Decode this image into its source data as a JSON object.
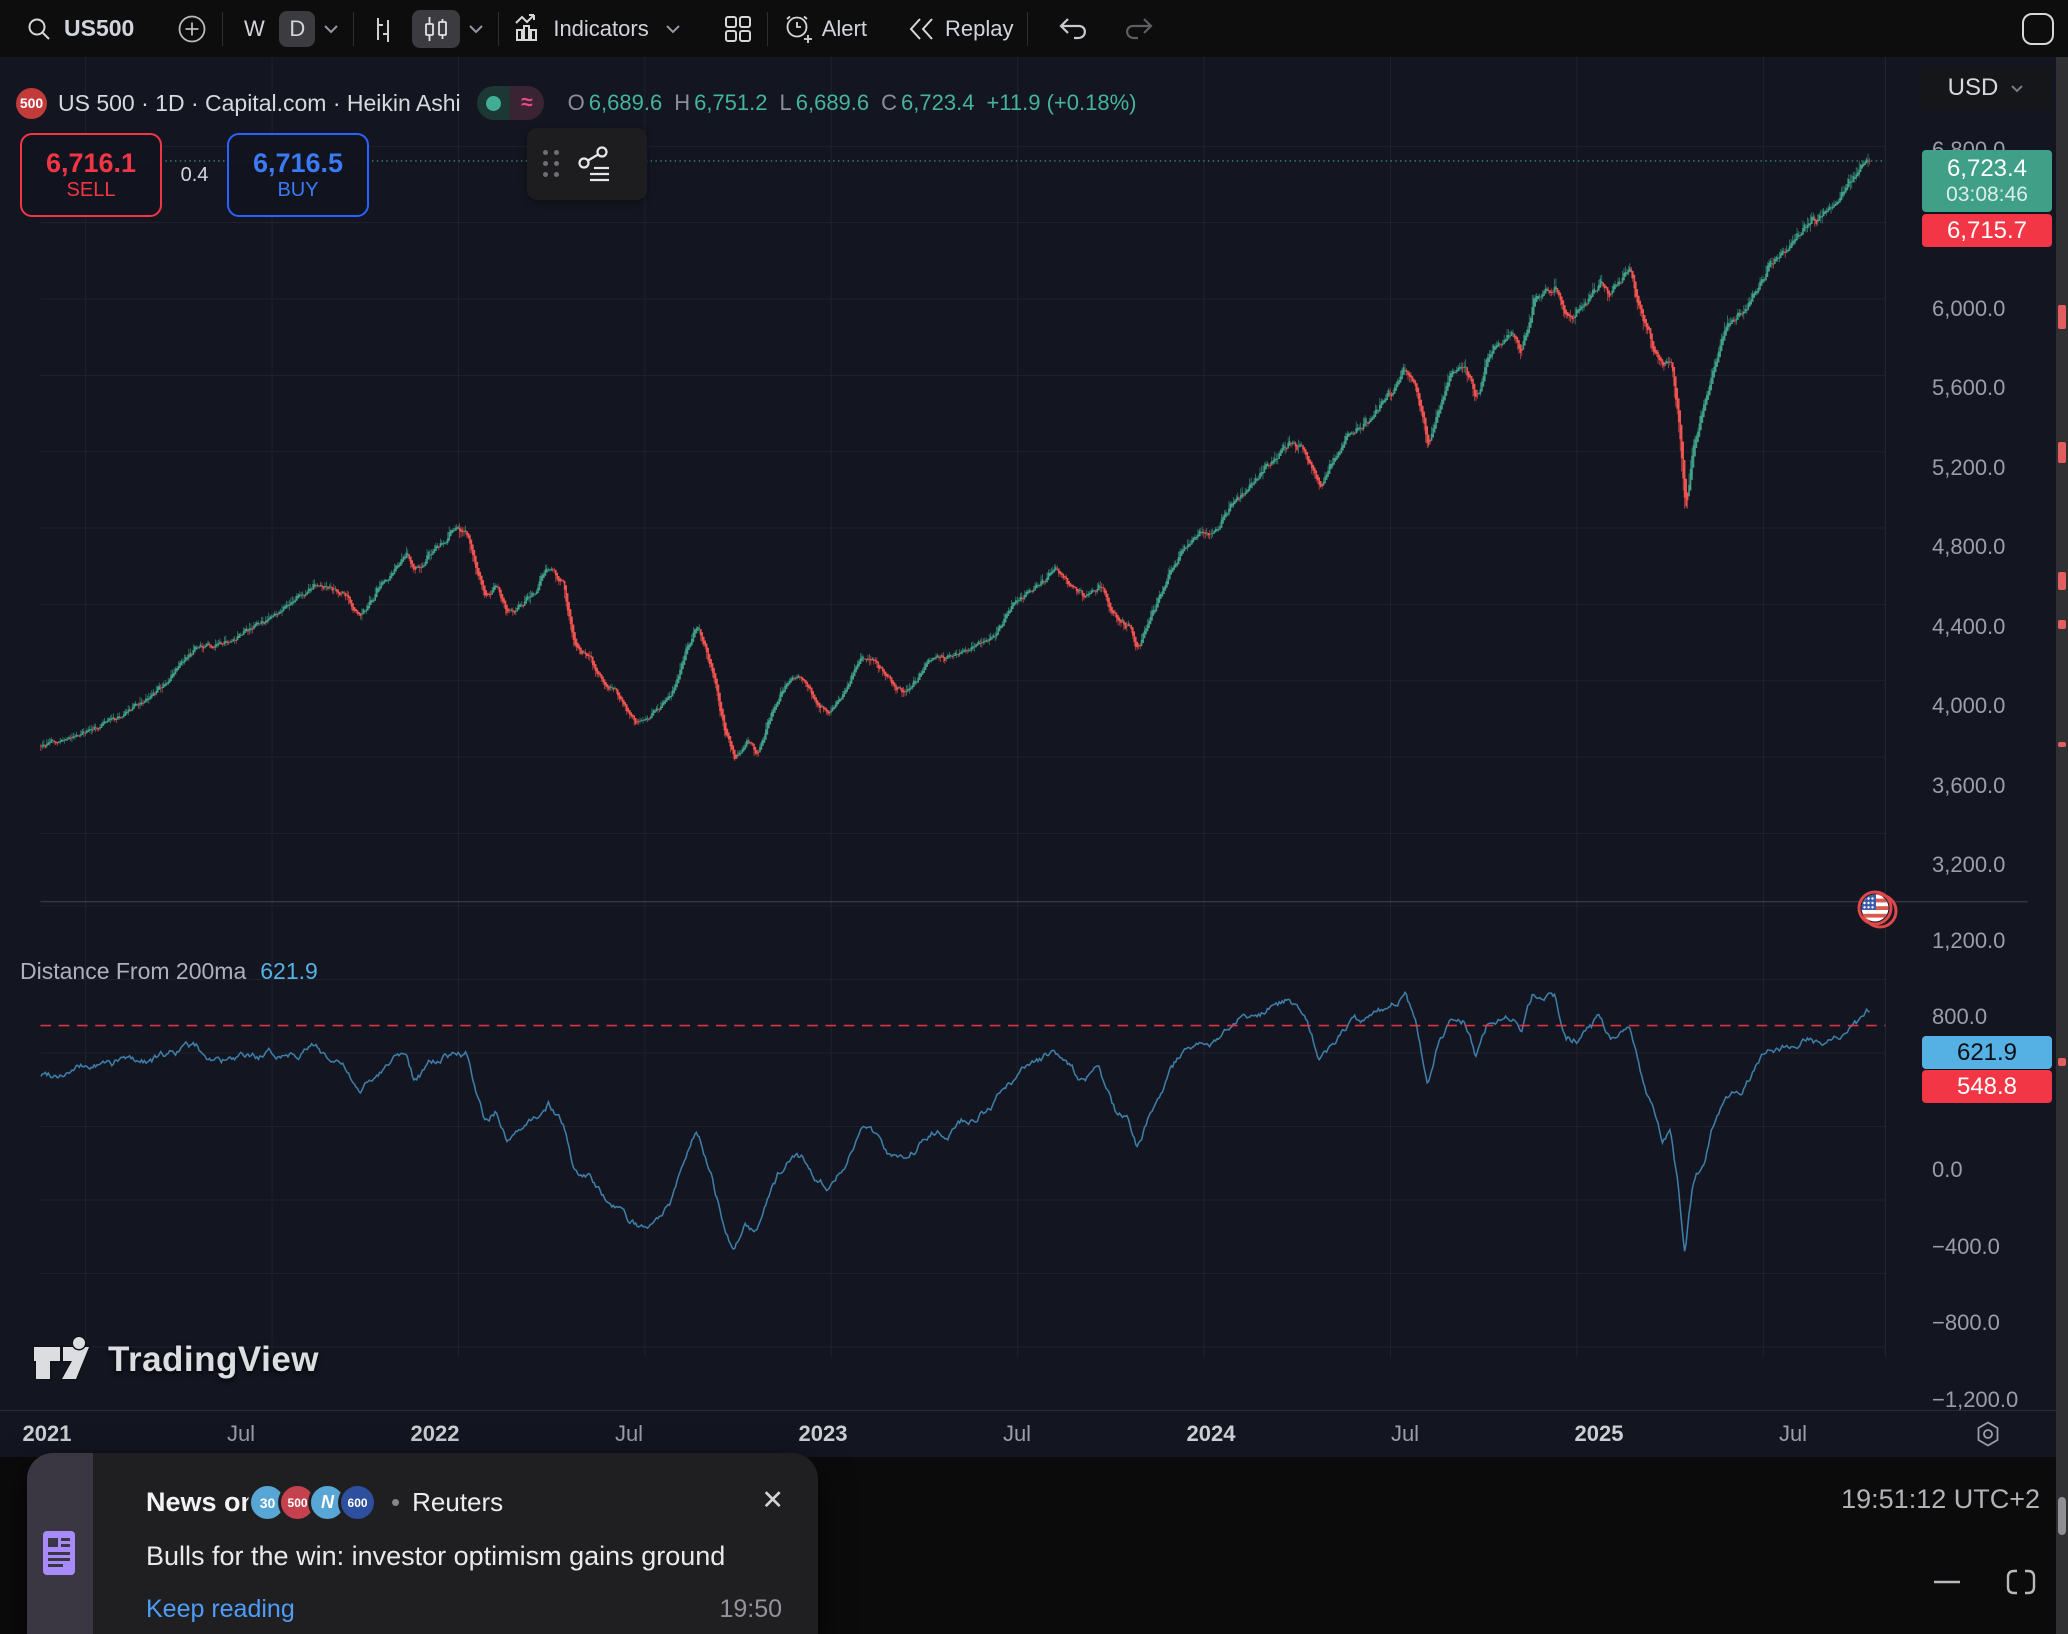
{
  "toolbar": {
    "symbol": "US500",
    "interval_w": "W",
    "interval_d": "D",
    "indicators": "Indicators",
    "alert": "Alert",
    "replay": "Replay"
  },
  "currency": {
    "value": "USD"
  },
  "legend": {
    "badge": "500",
    "title": "US 500 · 1D · Capital.com · Heikin Ashi",
    "approx_symbol": "≈",
    "o_label": "O",
    "o": "6,689.6",
    "h_label": "H",
    "h": "6,751.2",
    "l_label": "L",
    "l": "6,689.6",
    "c_label": "C",
    "c": "6,723.4",
    "change": "+11.9 (+0.18%)"
  },
  "trade": {
    "sell_price": "6,716.1",
    "sell": "SELL",
    "spread": "0.4",
    "buy_price": "6,716.5",
    "buy": "BUY"
  },
  "price_labels": {
    "last": "6,723.4",
    "countdown": "03:08:46",
    "bid": "6,715.7"
  },
  "indicator": {
    "name": "Distance From 200ma",
    "value": "621.9",
    "alert": "548.8"
  },
  "watermark": {
    "text": "TradingView"
  },
  "news": {
    "prefix": "News on",
    "badges": [
      "30",
      "500",
      "N",
      "600"
    ],
    "source": "Reuters",
    "headline": "Bulls for the win: investor optimism gains ground",
    "cta": "Keep reading",
    "time": "19:50"
  },
  "status": {
    "clock": "19:51:12 UTC+2"
  },
  "colors": {
    "candle_up": "#40a087",
    "candle_down": "#ef5350",
    "sell_red": "#f23645",
    "buy_blue": "#2962ff",
    "indicator_line": "#3e7ea8",
    "indicator_tag_blue": "#55b1e3",
    "teal_text": "#45b39d",
    "chart_bg": "#131621"
  },
  "chart_data": {
    "type": "candlestick",
    "symbol": "US 500",
    "interval": "1D",
    "candle_style": "Heikin Ashi",
    "x_start": 2020.88,
    "x_end": 2025.785,
    "x_ticks": [
      {
        "t": 2021.0,
        "label": "2021",
        "major": true
      },
      {
        "t": 2021.5,
        "label": "Jul",
        "major": false
      },
      {
        "t": 2022.0,
        "label": "2022",
        "major": true
      },
      {
        "t": 2022.5,
        "label": "Jul",
        "major": false
      },
      {
        "t": 2023.0,
        "label": "2023",
        "major": true
      },
      {
        "t": 2023.5,
        "label": "Jul",
        "major": false
      },
      {
        "t": 2024.0,
        "label": "2024",
        "major": true
      },
      {
        "t": 2024.5,
        "label": "Jul",
        "major": false
      },
      {
        "t": 2025.0,
        "label": "2025",
        "major": true
      },
      {
        "t": 2025.5,
        "label": "Jul",
        "major": false
      }
    ],
    "price_pane": {
      "grid_min": 3200,
      "grid_max": 6800,
      "grid_step": 400,
      "axis_labels": [
        {
          "v": 6800,
          "text": "6,800.0"
        },
        {
          "v": 6000,
          "text": "6,000.0"
        },
        {
          "v": 5600,
          "text": "5,600.0"
        },
        {
          "v": 5200,
          "text": "5,200.0"
        },
        {
          "v": 4800,
          "text": "4,800.0"
        },
        {
          "v": 4400,
          "text": "4,400.0"
        },
        {
          "v": 4000,
          "text": "4,000.0"
        },
        {
          "v": 3600,
          "text": "3,600.0"
        },
        {
          "v": 3200,
          "text": "3,200.0"
        }
      ],
      "open": 6689.6,
      "high": 6751.2,
      "low": 6689.6,
      "close": 6723.4,
      "change": 11.9,
      "change_pct": 0.18,
      "last_price": 6723.4,
      "bid_price": 6715.7,
      "anchors": [
        [
          2020.88,
          3660
        ],
        [
          2020.96,
          3695
        ],
        [
          2021.04,
          3770
        ],
        [
          2021.1,
          3830
        ],
        [
          2021.16,
          3900
        ],
        [
          2021.2,
          3960
        ],
        [
          2021.25,
          4080
        ],
        [
          2021.29,
          4170
        ],
        [
          2021.33,
          4180
        ],
        [
          2021.37,
          4200
        ],
        [
          2021.41,
          4230
        ],
        [
          2021.45,
          4290
        ],
        [
          2021.5,
          4330
        ],
        [
          2021.54,
          4400
        ],
        [
          2021.58,
          4450
        ],
        [
          2021.62,
          4520
        ],
        [
          2021.66,
          4480
        ],
        [
          2021.7,
          4450
        ],
        [
          2021.73,
          4330
        ],
        [
          2021.78,
          4470
        ],
        [
          2021.83,
          4600
        ],
        [
          2021.86,
          4690
        ],
        [
          2021.88,
          4560
        ],
        [
          2021.92,
          4660
        ],
        [
          2021.95,
          4710
        ],
        [
          2021.98,
          4780
        ],
        [
          2022.02,
          4790
        ],
        [
          2022.05,
          4560
        ],
        [
          2022.07,
          4420
        ],
        [
          2022.1,
          4500
        ],
        [
          2022.13,
          4350
        ],
        [
          2022.16,
          4380
        ],
        [
          2022.2,
          4460
        ],
        [
          2022.24,
          4600
        ],
        [
          2022.28,
          4500
        ],
        [
          2022.31,
          4180
        ],
        [
          2022.35,
          4130
        ],
        [
          2022.38,
          4000
        ],
        [
          2022.42,
          3950
        ],
        [
          2022.46,
          3800
        ],
        [
          2022.49,
          3780
        ],
        [
          2022.53,
          3850
        ],
        [
          2022.57,
          3920
        ],
        [
          2022.61,
          4160
        ],
        [
          2022.64,
          4290
        ],
        [
          2022.68,
          4050
        ],
        [
          2022.71,
          3750
        ],
        [
          2022.74,
          3590
        ],
        [
          2022.77,
          3680
        ],
        [
          2022.8,
          3620
        ],
        [
          2022.83,
          3790
        ],
        [
          2022.87,
          3960
        ],
        [
          2022.9,
          4020
        ],
        [
          2022.93,
          3980
        ],
        [
          2022.96,
          3870
        ],
        [
          2022.99,
          3830
        ],
        [
          2023.03,
          3930
        ],
        [
          2023.08,
          4130
        ],
        [
          2023.12,
          4090
        ],
        [
          2023.16,
          3990
        ],
        [
          2023.19,
          3930
        ],
        [
          2023.23,
          4010
        ],
        [
          2023.27,
          4120
        ],
        [
          2023.31,
          4110
        ],
        [
          2023.35,
          4150
        ],
        [
          2023.39,
          4190
        ],
        [
          2023.44,
          4240
        ],
        [
          2023.48,
          4390
        ],
        [
          2023.52,
          4450
        ],
        [
          2023.56,
          4520
        ],
        [
          2023.6,
          4580
        ],
        [
          2023.64,
          4500
        ],
        [
          2023.68,
          4430
        ],
        [
          2023.72,
          4500
        ],
        [
          2023.76,
          4330
        ],
        [
          2023.8,
          4270
        ],
        [
          2023.82,
          4160
        ],
        [
          2023.86,
          4360
        ],
        [
          2023.9,
          4550
        ],
        [
          2023.94,
          4680
        ],
        [
          2023.98,
          4770
        ],
        [
          2024.03,
          4780
        ],
        [
          2024.07,
          4920
        ],
        [
          2024.11,
          5000
        ],
        [
          2024.15,
          5090
        ],
        [
          2024.19,
          5160
        ],
        [
          2024.23,
          5250
        ],
        [
          2024.27,
          5200
        ],
        [
          2024.31,
          5020
        ],
        [
          2024.35,
          5180
        ],
        [
          2024.39,
          5300
        ],
        [
          2024.43,
          5350
        ],
        [
          2024.47,
          5440
        ],
        [
          2024.51,
          5540
        ],
        [
          2024.54,
          5640
        ],
        [
          2024.57,
          5500
        ],
        [
          2024.6,
          5230
        ],
        [
          2024.63,
          5450
        ],
        [
          2024.66,
          5610
        ],
        [
          2024.7,
          5640
        ],
        [
          2024.73,
          5470
        ],
        [
          2024.76,
          5710
        ],
        [
          2024.8,
          5780
        ],
        [
          2024.83,
          5830
        ],
        [
          2024.85,
          5720
        ],
        [
          2024.88,
          5970
        ],
        [
          2024.91,
          6030
        ],
        [
          2024.94,
          6070
        ],
        [
          2024.97,
          5900
        ],
        [
          2025.0,
          5920
        ],
        [
          2025.03,
          6010
        ],
        [
          2025.06,
          6090
        ],
        [
          2025.09,
          6020
        ],
        [
          2025.12,
          6110
        ],
        [
          2025.14,
          6140
        ],
        [
          2025.17,
          5930
        ],
        [
          2025.2,
          5770
        ],
        [
          2025.23,
          5630
        ],
        [
          2025.25,
          5680
        ],
        [
          2025.27,
          5400
        ],
        [
          2025.29,
          4870
        ],
        [
          2025.31,
          5250
        ],
        [
          2025.34,
          5440
        ],
        [
          2025.37,
          5670
        ],
        [
          2025.4,
          5860
        ],
        [
          2025.44,
          5920
        ],
        [
          2025.48,
          6050
        ],
        [
          2025.52,
          6190
        ],
        [
          2025.56,
          6270
        ],
        [
          2025.6,
          6360
        ],
        [
          2025.63,
          6410
        ],
        [
          2025.66,
          6450
        ],
        [
          2025.69,
          6500
        ],
        [
          2025.72,
          6590
        ],
        [
          2025.75,
          6660
        ],
        [
          2025.785,
          6723
        ]
      ]
    },
    "indicator_pane": {
      "name": "Distance From 200ma",
      "grid_min": -1200,
      "grid_max": 1200,
      "grid_step": 400,
      "axis_labels": [
        {
          "v": 1200,
          "text": "1,200.0"
        },
        {
          "v": 800,
          "text": "800.0"
        },
        {
          "v": 0,
          "text": "0.0"
        },
        {
          "v": -400,
          "text": "−400.0"
        },
        {
          "v": -800,
          "text": "−800.0"
        },
        {
          "v": -1200,
          "text": "−1,200.0"
        }
      ],
      "last_value": 621.9,
      "alert_value": 548.8,
      "anchors": [
        [
          2020.88,
          280
        ],
        [
          2020.96,
          310
        ],
        [
          2021.04,
          330
        ],
        [
          2021.1,
          360
        ],
        [
          2021.16,
          360
        ],
        [
          2021.2,
          380
        ],
        [
          2021.25,
          420
        ],
        [
          2021.29,
          430
        ],
        [
          2021.33,
          380
        ],
        [
          2021.37,
          360
        ],
        [
          2021.41,
          350
        ],
        [
          2021.45,
          370
        ],
        [
          2021.5,
          380
        ],
        [
          2021.54,
          400
        ],
        [
          2021.58,
          420
        ],
        [
          2021.62,
          440
        ],
        [
          2021.66,
          360
        ],
        [
          2021.7,
          300
        ],
        [
          2021.73,
          160
        ],
        [
          2021.78,
          290
        ],
        [
          2021.83,
          390
        ],
        [
          2021.86,
          430
        ],
        [
          2021.88,
          280
        ],
        [
          2021.92,
          340
        ],
        [
          2021.95,
          360
        ],
        [
          2021.98,
          400
        ],
        [
          2022.02,
          390
        ],
        [
          2022.05,
          140
        ],
        [
          2022.07,
          30
        ],
        [
          2022.1,
          90
        ],
        [
          2022.13,
          -80
        ],
        [
          2022.16,
          -60
        ],
        [
          2022.2,
          20
        ],
        [
          2022.24,
          130
        ],
        [
          2022.28,
          30
        ],
        [
          2022.31,
          -260
        ],
        [
          2022.35,
          -290
        ],
        [
          2022.38,
          -380
        ],
        [
          2022.42,
          -420
        ],
        [
          2022.46,
          -540
        ],
        [
          2022.49,
          -560
        ],
        [
          2022.53,
          -470
        ],
        [
          2022.57,
          -390
        ],
        [
          2022.61,
          -140
        ],
        [
          2022.64,
          -20
        ],
        [
          2022.68,
          -250
        ],
        [
          2022.71,
          -520
        ],
        [
          2022.74,
          -660
        ],
        [
          2022.77,
          -550
        ],
        [
          2022.8,
          -600
        ],
        [
          2022.83,
          -420
        ],
        [
          2022.87,
          -230
        ],
        [
          2022.9,
          -160
        ],
        [
          2022.93,
          -190
        ],
        [
          2022.96,
          -290
        ],
        [
          2022.99,
          -320
        ],
        [
          2023.03,
          -210
        ],
        [
          2023.08,
          -20
        ],
        [
          2023.12,
          -50
        ],
        [
          2023.16,
          -150
        ],
        [
          2023.19,
          -200
        ],
        [
          2023.23,
          -110
        ],
        [
          2023.27,
          0
        ],
        [
          2023.31,
          -10
        ],
        [
          2023.35,
          30
        ],
        [
          2023.39,
          60
        ],
        [
          2023.44,
          110
        ],
        [
          2023.48,
          250
        ],
        [
          2023.52,
          300
        ],
        [
          2023.56,
          360
        ],
        [
          2023.6,
          400
        ],
        [
          2023.64,
          310
        ],
        [
          2023.68,
          230
        ],
        [
          2023.72,
          290
        ],
        [
          2023.76,
          90
        ],
        [
          2023.8,
          20
        ],
        [
          2023.82,
          -100
        ],
        [
          2023.86,
          90
        ],
        [
          2023.9,
          270
        ],
        [
          2023.94,
          400
        ],
        [
          2023.98,
          470
        ],
        [
          2024.03,
          460
        ],
        [
          2024.07,
          560
        ],
        [
          2024.11,
          600
        ],
        [
          2024.15,
          630
        ],
        [
          2024.19,
          650
        ],
        [
          2024.23,
          680
        ],
        [
          2024.27,
          600
        ],
        [
          2024.31,
          380
        ],
        [
          2024.35,
          480
        ],
        [
          2024.39,
          560
        ],
        [
          2024.43,
          570
        ],
        [
          2024.47,
          610
        ],
        [
          2024.51,
          660
        ],
        [
          2024.54,
          700
        ],
        [
          2024.57,
          540
        ],
        [
          2024.6,
          240
        ],
        [
          2024.63,
          440
        ],
        [
          2024.66,
          580
        ],
        [
          2024.7,
          580
        ],
        [
          2024.73,
          380
        ],
        [
          2024.76,
          570
        ],
        [
          2024.8,
          600
        ],
        [
          2024.83,
          620
        ],
        [
          2024.85,
          480
        ],
        [
          2024.88,
          680
        ],
        [
          2024.91,
          700
        ],
        [
          2024.94,
          690
        ],
        [
          2024.97,
          480
        ],
        [
          2025.0,
          470
        ],
        [
          2025.03,
          530
        ],
        [
          2025.06,
          580
        ],
        [
          2025.09,
          480
        ],
        [
          2025.12,
          530
        ],
        [
          2025.14,
          540
        ],
        [
          2025.17,
          310
        ],
        [
          2025.2,
          120
        ],
        [
          2025.23,
          -60
        ],
        [
          2025.25,
          -20
        ],
        [
          2025.27,
          -300
        ],
        [
          2025.29,
          -700
        ],
        [
          2025.31,
          -350
        ],
        [
          2025.34,
          -200
        ],
        [
          2025.37,
          30
        ],
        [
          2025.4,
          190
        ],
        [
          2025.44,
          220
        ],
        [
          2025.48,
          330
        ],
        [
          2025.52,
          420
        ],
        [
          2025.56,
          440
        ],
        [
          2025.6,
          480
        ],
        [
          2025.63,
          470
        ],
        [
          2025.66,
          450
        ],
        [
          2025.69,
          460
        ],
        [
          2025.72,
          520
        ],
        [
          2025.75,
          560
        ],
        [
          2025.785,
          622
        ]
      ]
    }
  }
}
